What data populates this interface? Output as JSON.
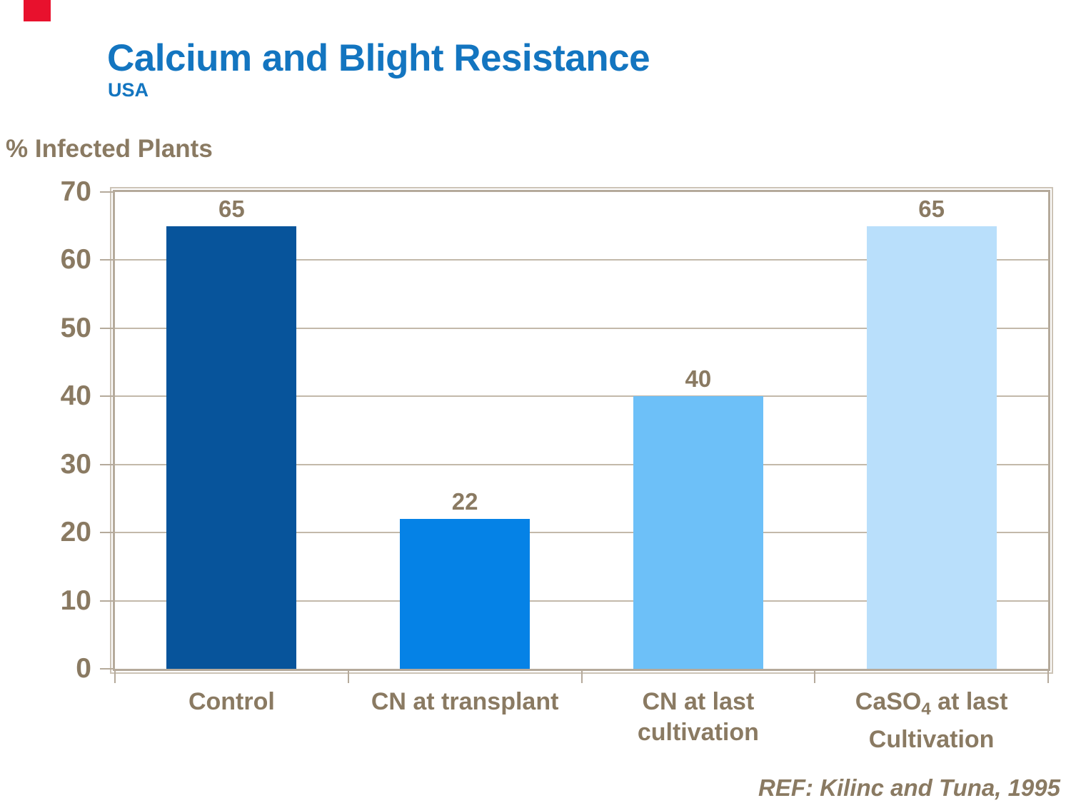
{
  "slide": {
    "title": "Calcium and Blight Resistance",
    "subtitle": "USA",
    "reference": "REF: Kilinc and Tuna, 1995",
    "colors": {
      "title_blue": "#1375c0",
      "text_brown": "#8a7a62",
      "accent_red": "#e8112d",
      "axis_border_tan": "#b5aa9b",
      "axis_outer_line_tan": "#ccc3b6",
      "gridline_tan": "#c3b9aa"
    }
  },
  "chart_data": {
    "type": "bar",
    "title": "Calcium and Blight Resistance",
    "subtitle": "USA",
    "ylabel": "% Infected Plants",
    "xlabel": "",
    "ylim": [
      0,
      70
    ],
    "yticks": [
      0,
      10,
      20,
      30,
      40,
      50,
      60,
      70
    ],
    "grid": true,
    "legend": "none",
    "categories": [
      "Control",
      "CN at transplant",
      "CN at last cultivation",
      "CaSO₄ at last Cultivation"
    ],
    "values": [
      65,
      22,
      40,
      65
    ],
    "value_labels": [
      "65",
      "22",
      "40",
      "65"
    ],
    "bar_colors": [
      "#07549b",
      "#0582e6",
      "#6dc0f8",
      "#b9dffb"
    ],
    "category_display": [
      [
        [
          {
            "t": "Control"
          }
        ]
      ],
      [
        [
          {
            "t": "CN at transplant"
          }
        ]
      ],
      [
        [
          {
            "t": "CN at last"
          }
        ],
        [
          {
            "t": "cultivation"
          }
        ]
      ],
      [
        [
          {
            "t": "CaSO"
          },
          {
            "t": "4",
            "sub": true
          },
          {
            "t": " at last"
          }
        ],
        [
          {
            "t": "Cultivation"
          }
        ]
      ]
    ],
    "annotation": "REF: Kilinc and Tuna, 1995"
  }
}
